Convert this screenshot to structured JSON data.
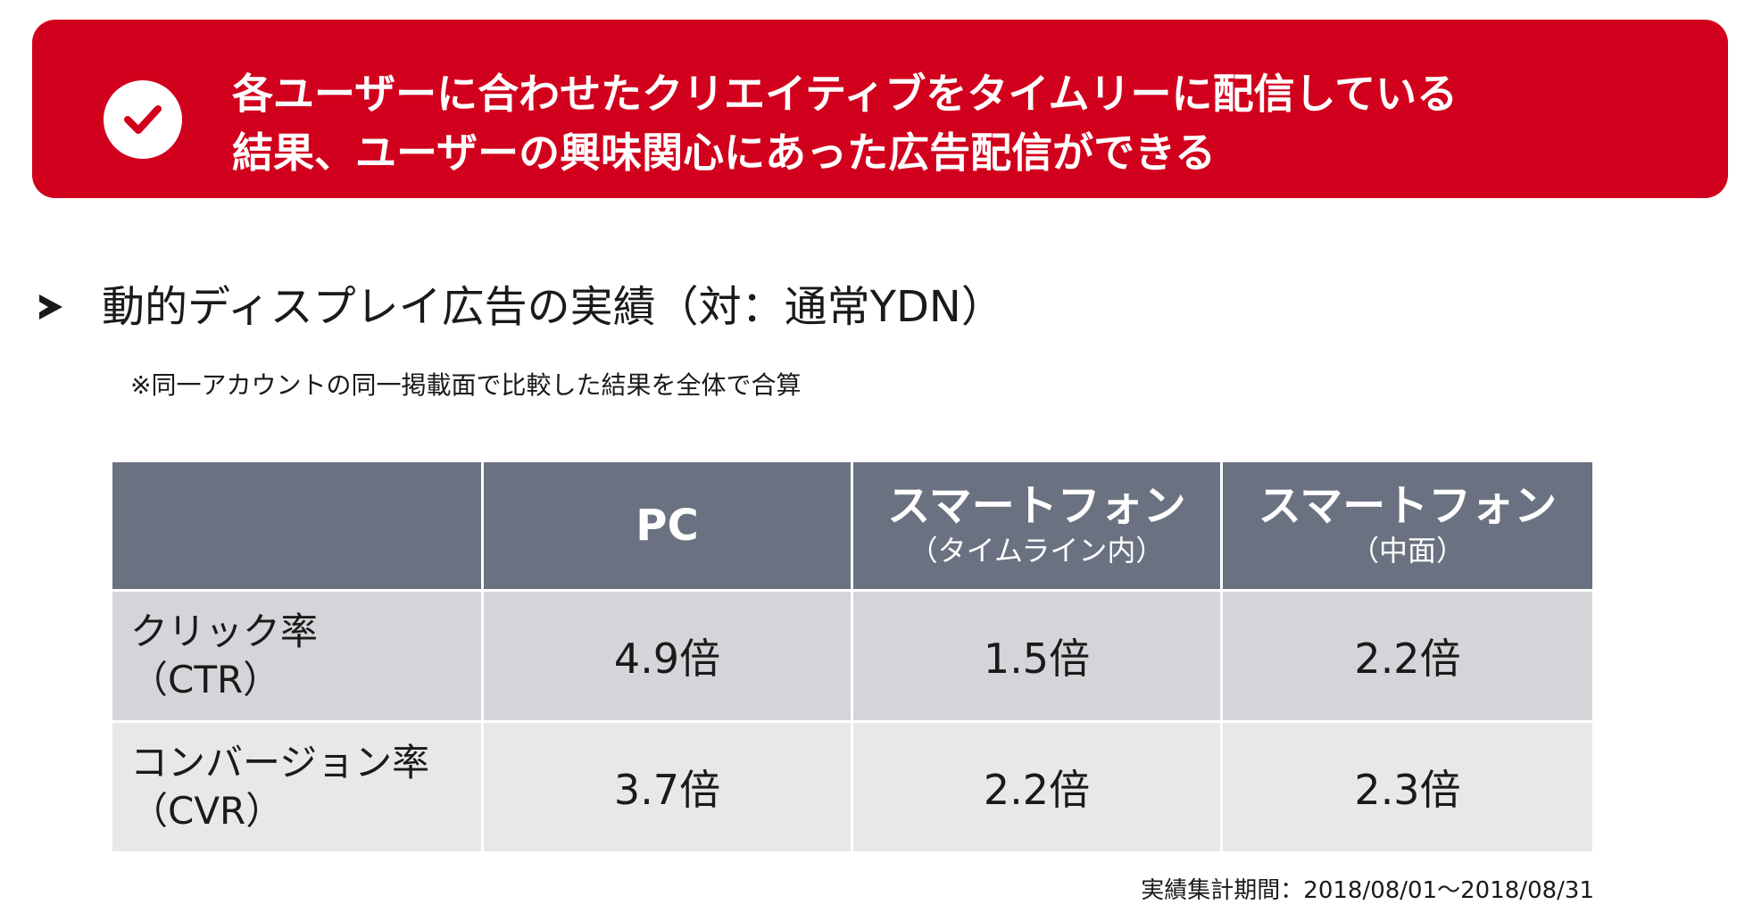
{
  "banner": {
    "icon": "check-icon",
    "bg_color": "#d1001c",
    "line1": "各ユーザーに合わせたクリエイティブをタイムリーに配信している",
    "line2": "結果、ユーザーの興味関心にあった広告配信ができる"
  },
  "section": {
    "heading": "動的ディスプレイ広告の実績（対：通常YDN）",
    "note": "※同一アカウントの同一掲載面で比較した結果を全体で合算"
  },
  "table": {
    "header_color": "#6a7180",
    "columns": [
      {
        "main": "",
        "sub": ""
      },
      {
        "main": "PC",
        "sub": ""
      },
      {
        "main": "スマートフォン",
        "sub": "（タイムライン内）"
      },
      {
        "main": "スマートフォン",
        "sub": "（中面）"
      }
    ],
    "rows": [
      {
        "label_line1": "クリック率",
        "label_line2": "（CTR）",
        "values": [
          "4.9倍",
          "1.5倍",
          "2.2倍"
        ]
      },
      {
        "label_line1": "コンバージョン率",
        "label_line2": "（CVR）",
        "values": [
          "3.7倍",
          "2.2倍",
          "2.3倍"
        ]
      }
    ]
  },
  "footer": {
    "period": "実績集計期間：2018/08/01～2018/08/31"
  }
}
